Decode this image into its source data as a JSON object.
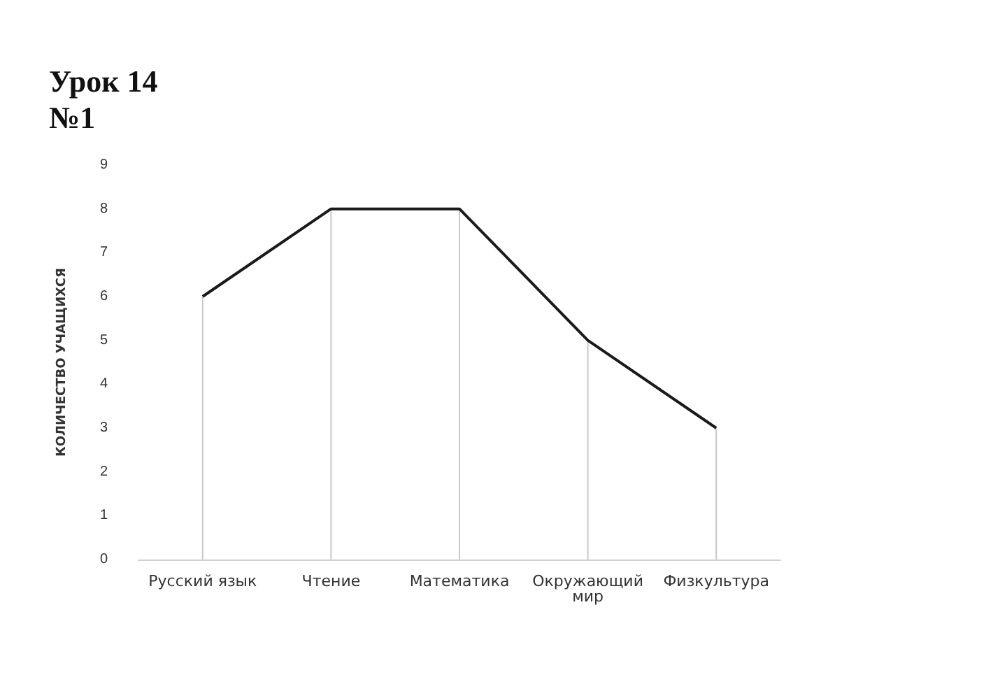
{
  "chart_data": {
    "type": "line",
    "title": "Урок 14\n№1",
    "ylabel": "КОЛИЧЕСТВО УЧАЩИХСЯ",
    "categories": [
      "Русский язык",
      "Чтение",
      "Математика",
      "Окружающий\nмир",
      "Физкультура"
    ],
    "series": [
      {
        "type": "bar",
        "color": "#c8c8c8",
        "values": [
          6,
          8,
          8,
          5,
          3
        ]
      },
      {
        "color": "#1a1a1a",
        "values": [
          6,
          8,
          8,
          5,
          3
        ]
      }
    ],
    "ylim": [
      0,
      9
    ],
    "yticks": [
      0,
      1,
      2,
      3,
      4,
      5,
      6,
      7,
      8,
      9
    ],
    "grid": false,
    "marker": "none",
    "line_style": "solid"
  }
}
